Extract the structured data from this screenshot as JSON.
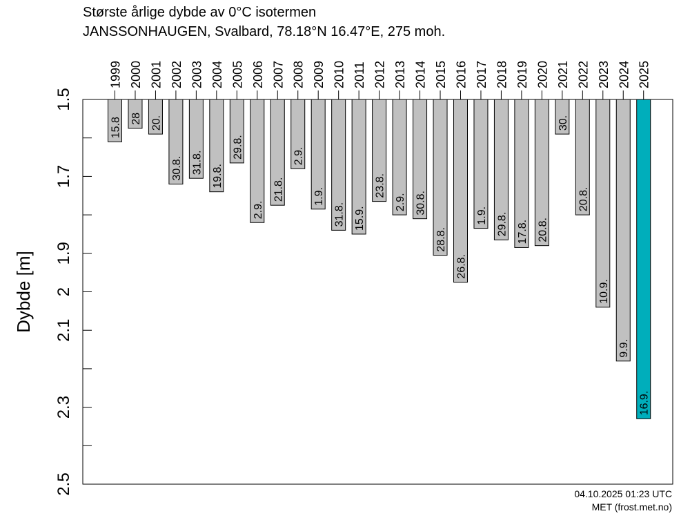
{
  "header": {
    "title": "Største årlige dybde av 0°C isotermen",
    "subtitle": "JANSSONHAUGEN, Svalbard, 78.18°N 16.47°E, 275 moh."
  },
  "footer": {
    "timestamp": "04.10.2025 01:23 UTC",
    "source": "MET (frost.met.no)"
  },
  "colors": {
    "bar": "#c0c0c0",
    "highlight": "#00aebb",
    "axis": "#000000"
  },
  "chart_data": {
    "type": "bar",
    "ylabel": "Dybde [m]",
    "ylim": [
      1.5,
      2.5
    ],
    "y_inverted": true,
    "y_ticks": [
      1.5,
      1.6,
      1.7,
      1.8,
      1.9,
      2.0,
      2.1,
      2.2,
      2.3,
      2.4,
      2.5
    ],
    "y_tick_labels": [
      "1.5",
      "",
      "1.7",
      "",
      "1.9",
      "2",
      "2.1",
      "",
      "2.3",
      "",
      "2.5"
    ],
    "categories": [
      "1999",
      "2000",
      "2001",
      "2002",
      "2003",
      "2004",
      "2005",
      "2006",
      "2007",
      "2008",
      "2009",
      "2010",
      "2011",
      "2012",
      "2013",
      "2014",
      "2015",
      "2016",
      "2017",
      "2018",
      "2019",
      "2020",
      "2021",
      "2022",
      "2023",
      "2024",
      "2025"
    ],
    "values": [
      1.61,
      1.575,
      1.59,
      1.72,
      1.705,
      1.74,
      1.665,
      1.82,
      1.775,
      1.68,
      1.785,
      1.84,
      1.85,
      1.765,
      1.8,
      1.81,
      1.905,
      1.975,
      1.835,
      1.865,
      1.885,
      1.88,
      1.59,
      1.8,
      2.04,
      2.18,
      2.33
    ],
    "data_labels": [
      "15.8",
      "28",
      "20.",
      "30.8.",
      "31.8.",
      "19.8.",
      "29.8.",
      "2.9.",
      "21.8.",
      "2.9.",
      "1.9.",
      "31.8.",
      "15.9.",
      "23.8.",
      "2.9.",
      "30.8.",
      "28.8.",
      "26.8.",
      "1.9.",
      "29.8.",
      "17.8.",
      "20.8.",
      "30.",
      "20.8.",
      "10.9.",
      "9.9.",
      "16.9."
    ],
    "highlight_index": 26
  }
}
